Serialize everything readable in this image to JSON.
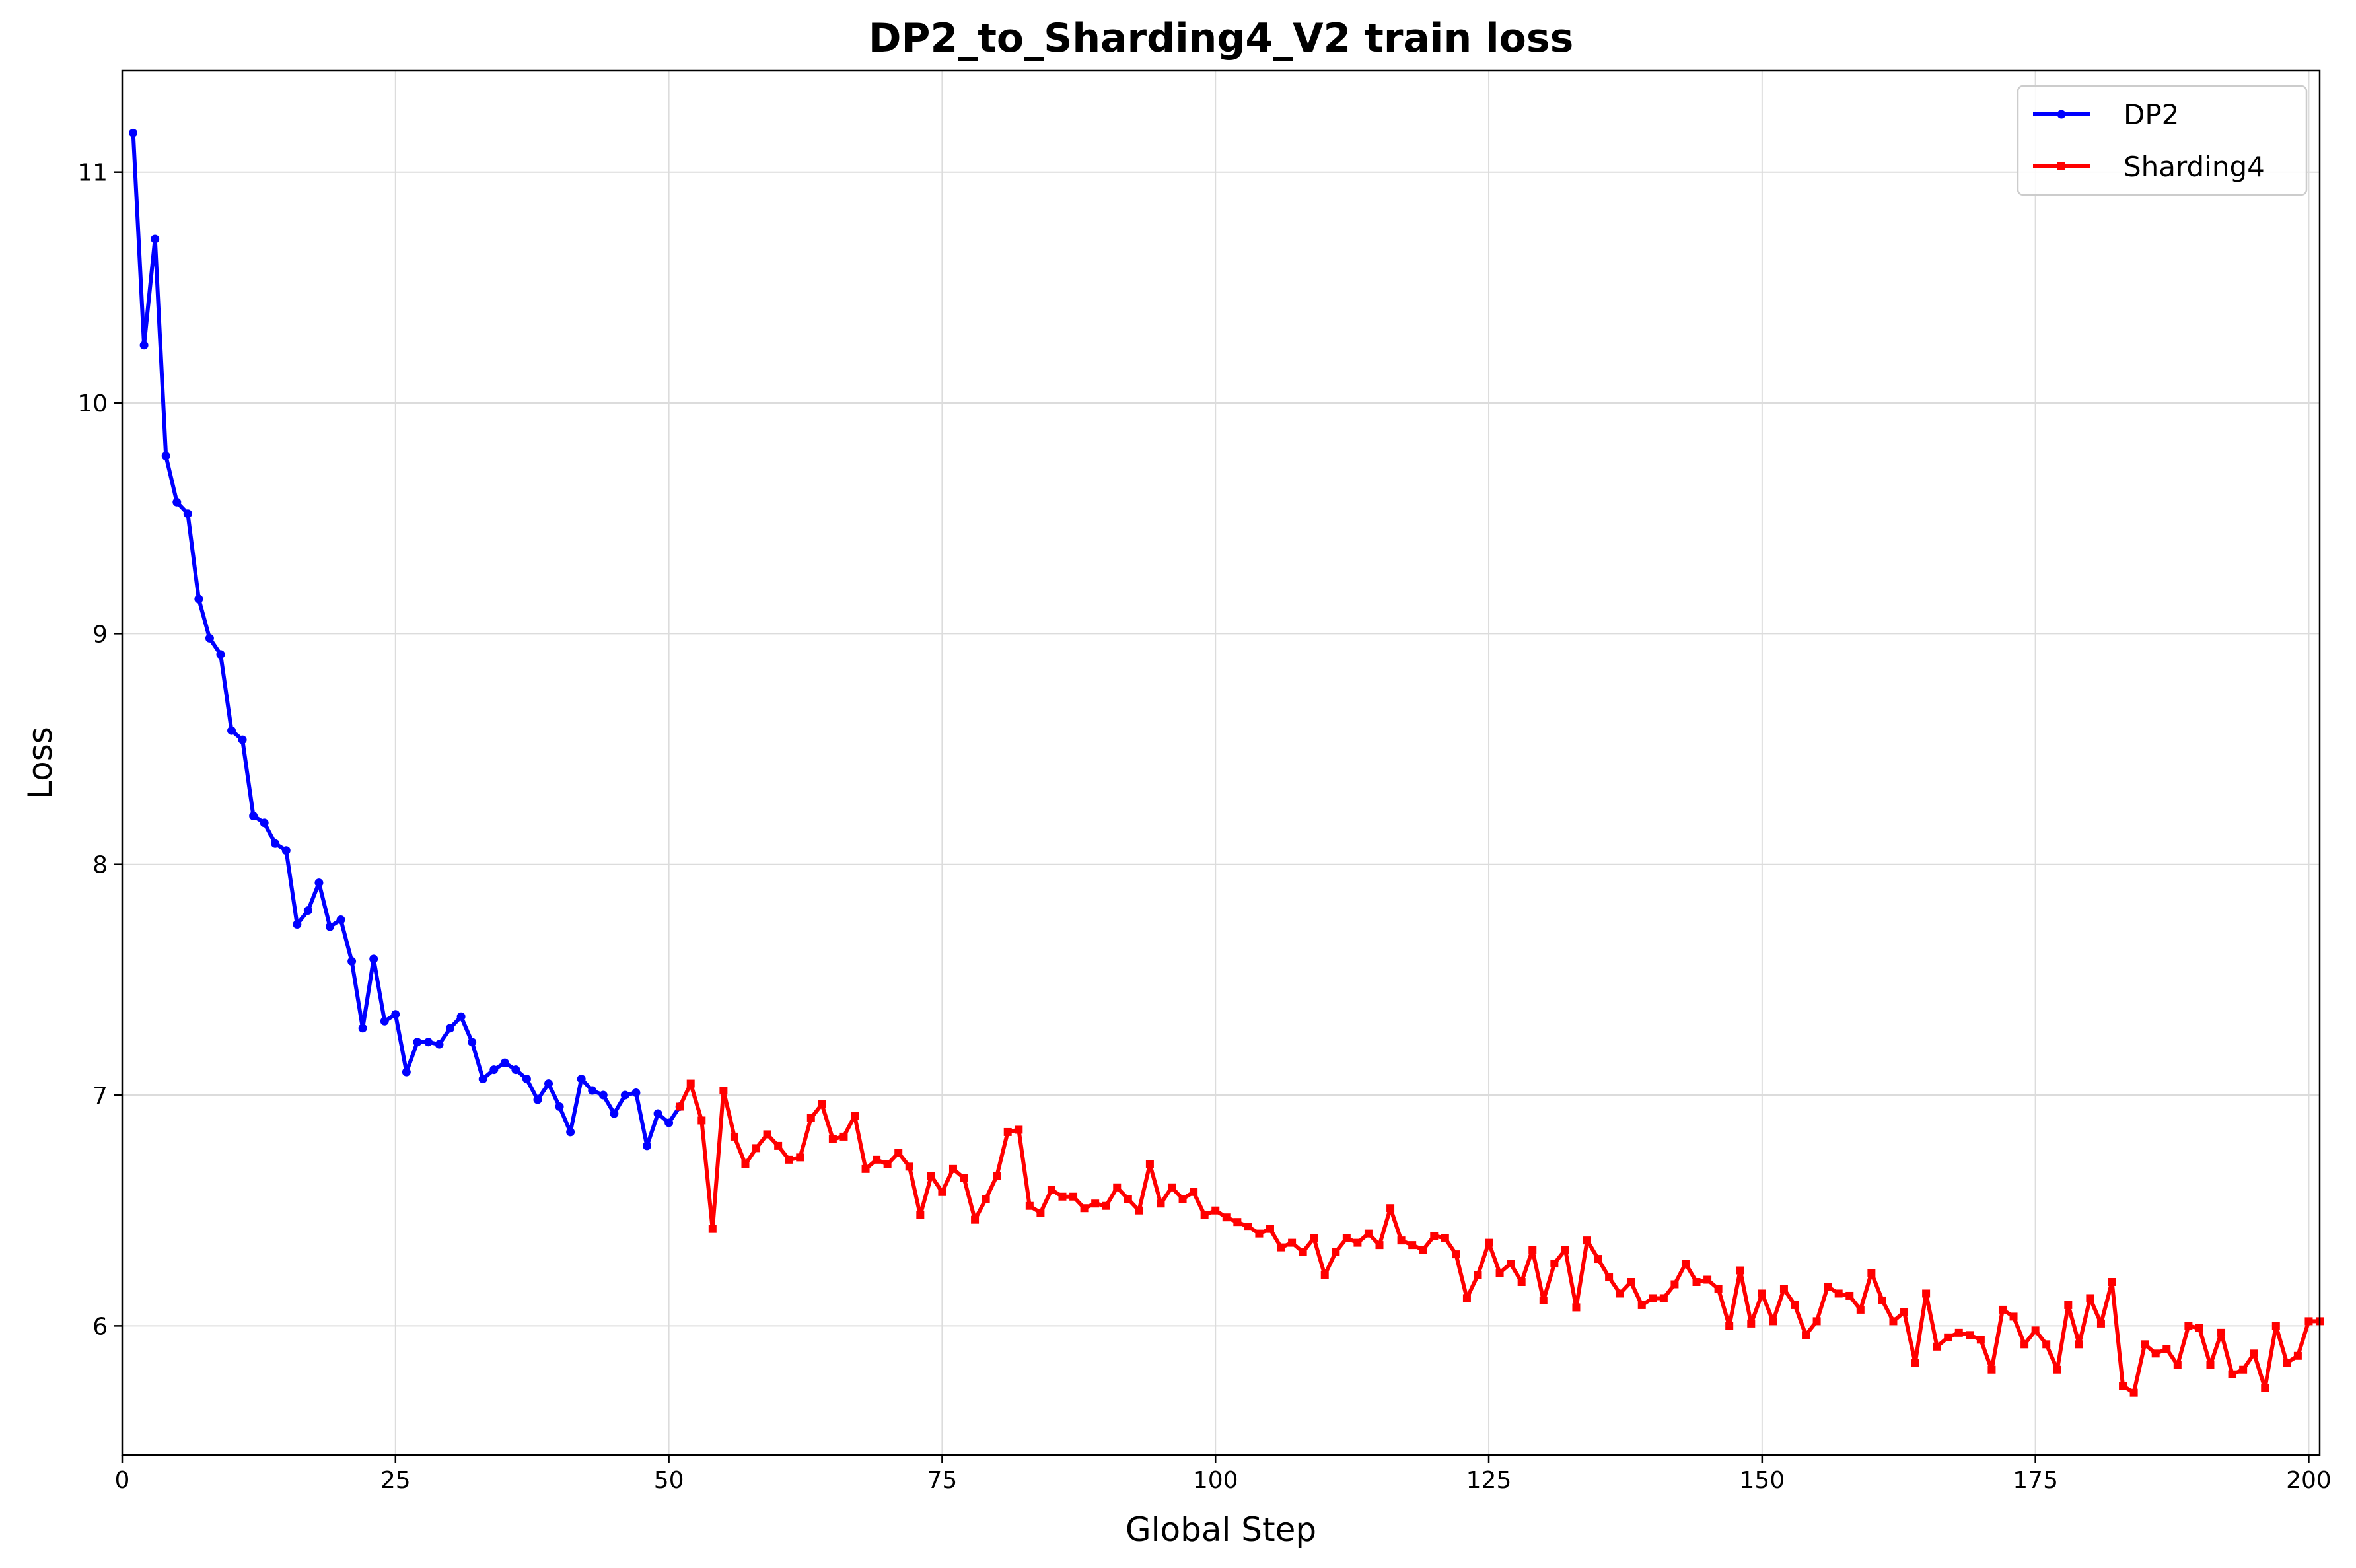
{
  "chart_data": {
    "type": "line",
    "title": "DP2_to_Sharding4_V2 train loss",
    "xlabel": "Global Step",
    "ylabel": "Loss",
    "xlim": [
      0,
      201
    ],
    "ylim": [
      5.44,
      11.44
    ],
    "xticks": [
      0,
      25,
      50,
      75,
      100,
      125,
      150,
      175,
      200
    ],
    "yticks": [
      6,
      7,
      8,
      9,
      10,
      11
    ],
    "grid": true,
    "legend_position": "top-right",
    "series": [
      {
        "name": "DP2",
        "color": "#0000ff",
        "marker": "circle",
        "x": [
          1,
          2,
          3,
          4,
          5,
          6,
          7,
          8,
          9,
          10,
          11,
          12,
          13,
          14,
          15,
          16,
          17,
          18,
          19,
          20,
          21,
          22,
          23,
          24,
          25,
          26,
          27,
          28,
          29,
          30,
          31,
          32,
          33,
          34,
          35,
          36,
          37,
          38,
          39,
          40,
          41,
          42,
          43,
          44,
          45,
          46,
          47,
          48,
          49,
          50,
          51
        ],
        "y": [
          11.17,
          10.25,
          10.71,
          9.77,
          9.57,
          9.52,
          9.15,
          8.98,
          8.91,
          8.58,
          8.54,
          8.21,
          8.18,
          8.09,
          8.06,
          7.74,
          7.8,
          7.92,
          7.73,
          7.76,
          7.58,
          7.29,
          7.59,
          7.32,
          7.35,
          7.1,
          7.23,
          7.23,
          7.22,
          7.29,
          7.34,
          7.23,
          7.07,
          7.11,
          7.14,
          7.11,
          7.07,
          6.98,
          7.05,
          6.95,
          6.84,
          7.07,
          7.02,
          7.0,
          6.92,
          7.0,
          7.01,
          6.78,
          6.92,
          6.88,
          6.95
        ]
      },
      {
        "name": "Sharding4",
        "color": "#ff0000",
        "marker": "square",
        "x": [
          51,
          52,
          53,
          54,
          55,
          56,
          57,
          58,
          59,
          60,
          61,
          62,
          63,
          64,
          65,
          66,
          67,
          68,
          69,
          70,
          71,
          72,
          73,
          74,
          75,
          76,
          77,
          78,
          79,
          80,
          81,
          82,
          83,
          84,
          85,
          86,
          87,
          88,
          89,
          90,
          91,
          92,
          93,
          94,
          95,
          96,
          97,
          98,
          99,
          100,
          101,
          102,
          103,
          104,
          105,
          106,
          107,
          108,
          109,
          110,
          111,
          112,
          113,
          114,
          115,
          116,
          117,
          118,
          119,
          120,
          121,
          122,
          123,
          124,
          125,
          126,
          127,
          128,
          129,
          130,
          131,
          132,
          133,
          134,
          135,
          136,
          137,
          138,
          139,
          140,
          141,
          142,
          143,
          144,
          145,
          146,
          147,
          148,
          149,
          150,
          151,
          152,
          153,
          154,
          155,
          156,
          157,
          158,
          159,
          160,
          161,
          162,
          163,
          164,
          165,
          166,
          167,
          168,
          169,
          170,
          171,
          172,
          173,
          174,
          175,
          176,
          177,
          178,
          179,
          180,
          181,
          182,
          183,
          184,
          185,
          186,
          187,
          188,
          189,
          190,
          191,
          192,
          193,
          194,
          195,
          196,
          197,
          198,
          199,
          200,
          201
        ],
        "y": [
          6.95,
          7.05,
          6.89,
          6.42,
          7.02,
          6.82,
          6.7,
          6.77,
          6.83,
          6.78,
          6.72,
          6.73,
          6.9,
          6.96,
          6.81,
          6.82,
          6.91,
          6.68,
          6.72,
          6.7,
          6.75,
          6.69,
          6.48,
          6.65,
          6.58,
          6.68,
          6.64,
          6.46,
          6.55,
          6.65,
          6.84,
          6.85,
          6.52,
          6.49,
          6.59,
          6.56,
          6.56,
          6.51,
          6.53,
          6.52,
          6.6,
          6.55,
          6.5,
          6.7,
          6.53,
          6.6,
          6.55,
          6.58,
          6.48,
          6.5,
          6.47,
          6.45,
          6.43,
          6.4,
          6.42,
          6.34,
          6.36,
          6.32,
          6.38,
          6.22,
          6.32,
          6.38,
          6.36,
          6.4,
          6.35,
          6.51,
          6.37,
          6.35,
          6.33,
          6.39,
          6.38,
          6.31,
          6.12,
          6.22,
          6.36,
          6.23,
          6.27,
          6.19,
          6.33,
          6.11,
          6.27,
          6.33,
          6.08,
          6.37,
          6.29,
          6.21,
          6.14,
          6.19,
          6.09,
          6.12,
          6.12,
          6.18,
          6.27,
          6.19,
          6.2,
          6.16,
          6.0,
          6.24,
          6.01,
          6.14,
          6.02,
          6.16,
          6.09,
          5.96,
          6.02,
          6.17,
          6.14,
          6.13,
          6.07,
          6.23,
          6.11,
          6.02,
          6.06,
          5.84,
          6.14,
          5.91,
          5.95,
          5.97,
          5.96,
          5.94,
          5.81,
          6.07,
          6.04,
          5.92,
          5.98,
          5.92,
          5.81,
          6.09,
          5.92,
          6.12,
          6.01,
          6.19,
          5.74,
          5.71,
          5.92,
          5.88,
          5.9,
          5.83,
          6.0,
          5.99,
          5.83,
          5.97,
          5.79,
          5.81,
          5.88,
          5.73,
          6.0,
          5.84,
          5.87,
          6.02,
          6.02
        ]
      }
    ]
  }
}
